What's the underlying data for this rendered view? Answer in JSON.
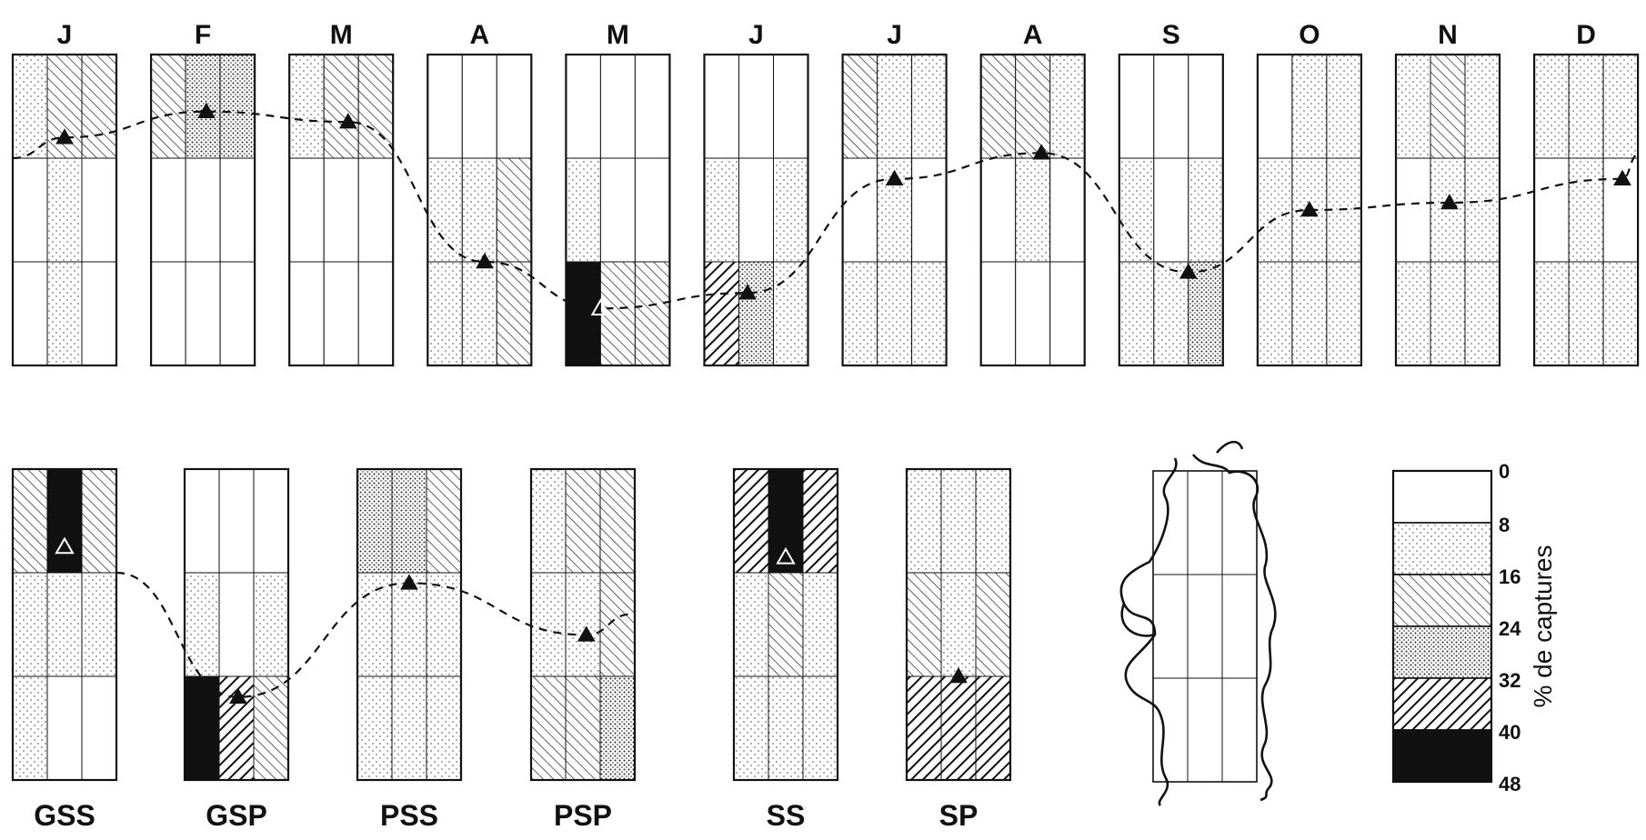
{
  "months": [
    {
      "label": "J",
      "grid": [
        [
          1,
          3,
          2
        ],
        [
          0,
          1,
          0
        ],
        [
          0,
          1,
          0
        ]
      ],
      "marker": {
        "row": 0.8,
        "col": 1.5,
        "filled": true
      }
    },
    {
      "label": "F",
      "grid": [
        [
          2,
          4,
          4
        ],
        [
          0,
          0,
          0
        ],
        [
          0,
          0,
          0
        ]
      ],
      "marker": {
        "row": 0.55,
        "col": 1.6,
        "filled": true
      }
    },
    {
      "label": "M",
      "grid": [
        [
          1,
          3,
          3
        ],
        [
          0,
          0,
          0
        ],
        [
          0,
          0,
          0
        ]
      ],
      "marker": {
        "row": 0.65,
        "col": 1.7,
        "filled": true
      }
    },
    {
      "label": "A",
      "grid": [
        [
          0,
          0,
          0
        ],
        [
          1,
          1,
          2
        ],
        [
          1,
          1,
          2
        ]
      ],
      "marker": {
        "row": 2.0,
        "col": 1.65,
        "filled": true
      }
    },
    {
      "label": "M",
      "grid": [
        [
          0,
          0,
          0
        ],
        [
          1,
          0,
          0
        ],
        [
          6,
          2,
          2
        ]
      ],
      "marker": {
        "row": 2.45,
        "col": 1.0,
        "filled": false
      }
    },
    {
      "label": "J",
      "grid": [
        [
          0,
          0,
          0
        ],
        [
          1,
          0,
          1
        ],
        [
          5,
          4,
          1
        ]
      ],
      "marker": {
        "row": 2.3,
        "col": 1.25,
        "filled": true
      }
    },
    {
      "label": "J",
      "grid": [
        [
          2,
          1,
          1
        ],
        [
          0,
          1,
          0
        ],
        [
          1,
          1,
          1
        ]
      ],
      "marker": {
        "row": 1.2,
        "col": 1.5,
        "filled": true
      }
    },
    {
      "label": "A",
      "grid": [
        [
          2,
          2,
          1
        ],
        [
          0,
          1,
          0
        ],
        [
          0,
          0,
          0
        ]
      ],
      "marker": {
        "row": 0.95,
        "col": 1.75,
        "filled": true
      }
    },
    {
      "label": "S",
      "grid": [
        [
          0,
          0,
          0
        ],
        [
          1,
          0,
          1
        ],
        [
          1,
          1,
          4
        ]
      ],
      "marker": {
        "row": 2.1,
        "col": 2.0,
        "filled": true
      }
    },
    {
      "label": "O",
      "grid": [
        [
          0,
          1,
          1
        ],
        [
          1,
          1,
          1
        ],
        [
          1,
          1,
          1
        ]
      ],
      "marker": {
        "row": 1.5,
        "col": 1.5,
        "filled": true
      }
    },
    {
      "label": "N",
      "grid": [
        [
          1,
          2,
          1
        ],
        [
          0,
          1,
          1
        ],
        [
          1,
          1,
          1
        ]
      ],
      "marker": {
        "row": 1.43,
        "col": 1.55,
        "filled": true
      }
    },
    {
      "label": "D",
      "grid": [
        [
          1,
          1,
          1
        ],
        [
          0,
          1,
          0
        ],
        [
          1,
          1,
          1
        ]
      ],
      "marker": {
        "row": 1.2,
        "col": 2.55,
        "filled": true
      }
    }
  ],
  "groups": [
    {
      "label": "GSS",
      "grid": [
        [
          2,
          6,
          2
        ],
        [
          1,
          1,
          1
        ],
        [
          1,
          0,
          0
        ]
      ],
      "marker": {
        "row": 0.75,
        "col": 1.5,
        "filled": false
      }
    },
    {
      "label": "GSP",
      "grid": [
        [
          0,
          0,
          0
        ],
        [
          1,
          0,
          1
        ],
        [
          6,
          5,
          2
        ]
      ],
      "marker": {
        "row": 2.2,
        "col": 1.55,
        "filled": true
      }
    },
    {
      "label": "PSS",
      "grid": [
        [
          4,
          4,
          2
        ],
        [
          1,
          1,
          1
        ],
        [
          1,
          1,
          1
        ]
      ],
      "marker": {
        "row": 1.1,
        "col": 1.5,
        "filled": true
      }
    },
    {
      "label": "PSP",
      "grid": [
        [
          1,
          2,
          2
        ],
        [
          1,
          1,
          2
        ],
        [
          2,
          2,
          4
        ]
      ],
      "marker": {
        "row": 1.6,
        "col": 1.6,
        "filled": true
      }
    },
    {
      "label": "SS",
      "grid": [
        [
          5,
          6,
          5
        ],
        [
          1,
          2,
          1
        ],
        [
          1,
          1,
          1
        ]
      ],
      "marker": {
        "row": 0.85,
        "col": 1.5,
        "filled": false
      }
    },
    {
      "label": "SP",
      "grid": [
        [
          1,
          1,
          1
        ],
        [
          2,
          1,
          2
        ],
        [
          5,
          5,
          5
        ]
      ],
      "marker": {
        "row": 2.0,
        "col": 1.5,
        "filled": true
      }
    }
  ],
  "legend": {
    "title": "% de captures",
    "ticks": [
      "0",
      "8",
      "16",
      "24",
      "32",
      "40",
      "48"
    ]
  },
  "colors": {
    "ink": "#111111",
    "paper": "#ffffff"
  }
}
